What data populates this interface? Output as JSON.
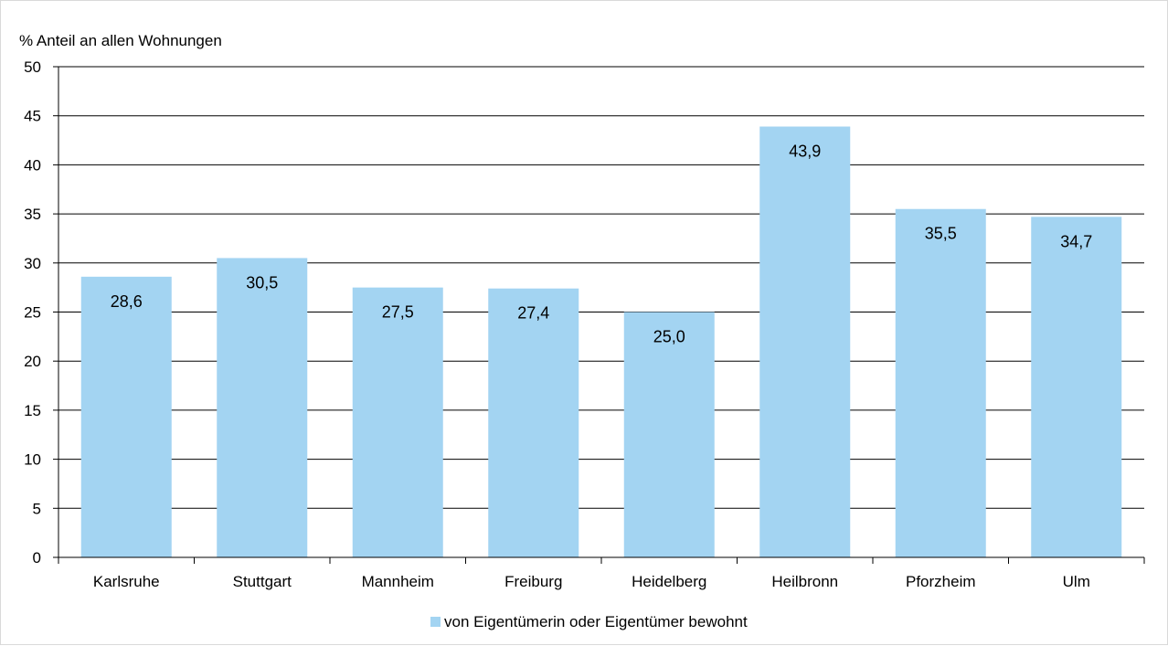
{
  "chart_data": {
    "type": "bar",
    "ylabel": "% Anteil an allen Wohnungen",
    "categories": [
      "Karlsruhe",
      "Stuttgart",
      "Mannheim",
      "Freiburg",
      "Heidelberg",
      "Heilbronn",
      "Pforzheim",
      "Ulm"
    ],
    "series": [
      {
        "name": "von Eigentümerin oder Eigentümer bewohnt",
        "values": [
          28.6,
          30.5,
          27.5,
          27.4,
          25.0,
          43.9,
          35.5,
          34.7
        ],
        "value_labels": [
          "28,6",
          "30,5",
          "27,5",
          "27,4",
          "25,0",
          "43,9",
          "35,5",
          "34,7"
        ]
      }
    ],
    "ylim": [
      0,
      50
    ],
    "yticks": [
      0,
      5,
      10,
      15,
      20,
      25,
      30,
      35,
      40,
      45,
      50
    ],
    "grid": true,
    "legend_position": "bottom",
    "colors": {
      "bar": "#a3d4f2",
      "grid": "#000000",
      "frame": "#d9d9d9"
    }
  }
}
